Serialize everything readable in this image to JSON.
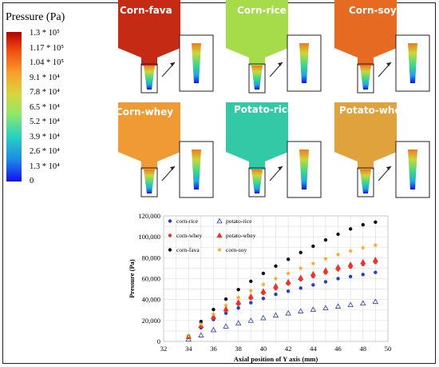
{
  "colorbar": {
    "title": "Pressure (Pa)",
    "ticks": [
      "1.3 * 10⁵",
      "1.17 * 10⁵",
      "1.04 * 10⁵",
      "9.1 * 10⁴",
      "7.8 * 10⁴",
      "6.5 * 10⁴",
      "5.2 * 10⁴",
      "3.9 * 10⁴",
      "2.6 * 10⁴",
      "1.3 * 10⁴",
      "0"
    ]
  },
  "simulations": [
    {
      "label": "Corn-fava",
      "color": "#c42a14"
    },
    {
      "label": "Corn-rice",
      "color": "#a6dc4a"
    },
    {
      "label": "Corn-soy",
      "color": "#e66a22"
    },
    {
      "label": "Corn-whey",
      "color": "#ef9a35"
    },
    {
      "label": "Potato-rice",
      "color": "#34c9a6"
    },
    {
      "label": "Potato-whey",
      "color": "#dfa23c"
    }
  ],
  "chart_data": {
    "type": "scatter",
    "xlabel": "Axial position of Y axis (mm)",
    "ylabel": "Pressure (Pa)",
    "xlim": [
      32,
      50
    ],
    "ylim": [
      0,
      120000
    ],
    "xticks": [
      "32",
      "34",
      "36",
      "38",
      "40",
      "42",
      "44",
      "46",
      "48",
      "50"
    ],
    "yticks": [
      "0",
      "20,000",
      "40,000",
      "60,000",
      "80,000",
      "100,000",
      "120,000"
    ],
    "grid": true,
    "legend": "top-left",
    "x": [
      34,
      35,
      36,
      37,
      38,
      39,
      40,
      41,
      42,
      43,
      44,
      45,
      46,
      47,
      48,
      49
    ],
    "series": [
      {
        "name": "corn-rice",
        "marker": "circle",
        "color": "#1f3fc4",
        "values": [
          4000,
          13000,
          21000,
          27000,
          32000,
          37000,
          41000,
          45000,
          48000,
          51000,
          54000,
          57000,
          60000,
          62000,
          64000,
          66000
        ]
      },
      {
        "name": "potato-rice",
        "marker": "triangle-open",
        "color": "#2b3fa8",
        "values": [
          2000,
          6000,
          11000,
          14500,
          17500,
          20000,
          22500,
          25000,
          27000,
          29000,
          30500,
          32000,
          33500,
          35000,
          36500,
          38000
        ]
      },
      {
        "name": "corn-whey",
        "marker": "circle",
        "color": "#e8352a",
        "values": [
          4500,
          14500,
          22500,
          29500,
          35500,
          41000,
          46000,
          50500,
          55000,
          59000,
          62000,
          65500,
          68500,
          71000,
          73500,
          75500
        ]
      },
      {
        "name": "potato-whey",
        "marker": "triangle",
        "color": "#e8352a",
        "values": [
          4500,
          15000,
          23500,
          31000,
          37500,
          43000,
          48000,
          53000,
          57000,
          61000,
          64500,
          68000,
          71000,
          73500,
          76000,
          78000
        ]
      },
      {
        "name": "corn-fava",
        "marker": "circle",
        "color": "#111111",
        "values": [
          5000,
          19000,
          30500,
          40500,
          49500,
          57500,
          65000,
          72000,
          78500,
          85000,
          91000,
          97000,
          102500,
          107500,
          111500,
          114000
        ]
      },
      {
        "name": "corn-soy",
        "marker": "star",
        "color": "#f5a623",
        "values": [
          5000,
          16500,
          26000,
          34500,
          42000,
          48500,
          54500,
          60000,
          65000,
          70000,
          74500,
          79000,
          83000,
          86500,
          89500,
          92000
        ]
      }
    ]
  }
}
